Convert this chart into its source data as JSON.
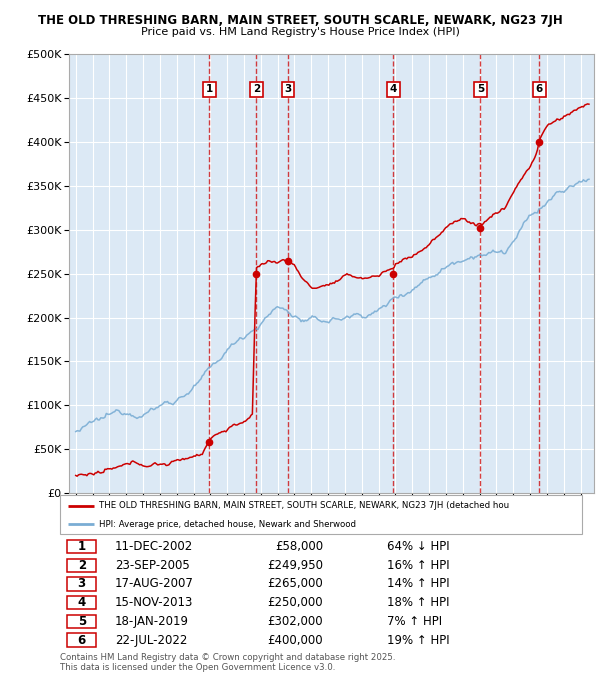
{
  "title1": "THE OLD THRESHING BARN, MAIN STREET, SOUTH SCARLE, NEWARK, NG23 7JH",
  "title2": "Price paid vs. HM Land Registry's House Price Index (HPI)",
  "ylim": [
    0,
    500000
  ],
  "yticks": [
    0,
    50000,
    100000,
    150000,
    200000,
    250000,
    300000,
    350000,
    400000,
    450000,
    500000
  ],
  "plot_bg": "#dce9f5",
  "grid_color": "#ffffff",
  "sale_dates_x": [
    2002.94,
    2005.73,
    2007.63,
    2013.88,
    2019.05,
    2022.55
  ],
  "sale_prices_y": [
    58000,
    249950,
    265000,
    250000,
    302000,
    400000
  ],
  "sale_labels": [
    "1",
    "2",
    "3",
    "4",
    "5",
    "6"
  ],
  "legend_red": "THE OLD THRESHING BARN, MAIN STREET, SOUTH SCARLE, NEWARK, NG23 7JH (detached hou",
  "legend_blue": "HPI: Average price, detached house, Newark and Sherwood",
  "table_rows": [
    [
      "1",
      "11-DEC-2002",
      "£58,000",
      "64% ↓ HPI"
    ],
    [
      "2",
      "23-SEP-2005",
      "£249,950",
      "16% ↑ HPI"
    ],
    [
      "3",
      "17-AUG-2007",
      "£265,000",
      "14% ↑ HPI"
    ],
    [
      "4",
      "15-NOV-2013",
      "£250,000",
      "18% ↑ HPI"
    ],
    [
      "5",
      "18-JAN-2019",
      "£302,000",
      "7% ↑ HPI"
    ],
    [
      "6",
      "22-JUL-2022",
      "£400,000",
      "19% ↑ HPI"
    ]
  ],
  "footer": "Contains HM Land Registry data © Crown copyright and database right 2025.\nThis data is licensed under the Open Government Licence v3.0.",
  "red_color": "#cc0000",
  "blue_color": "#7aadd4",
  "vline_color": "#cc0000",
  "vline_color_light": "#cc6666"
}
